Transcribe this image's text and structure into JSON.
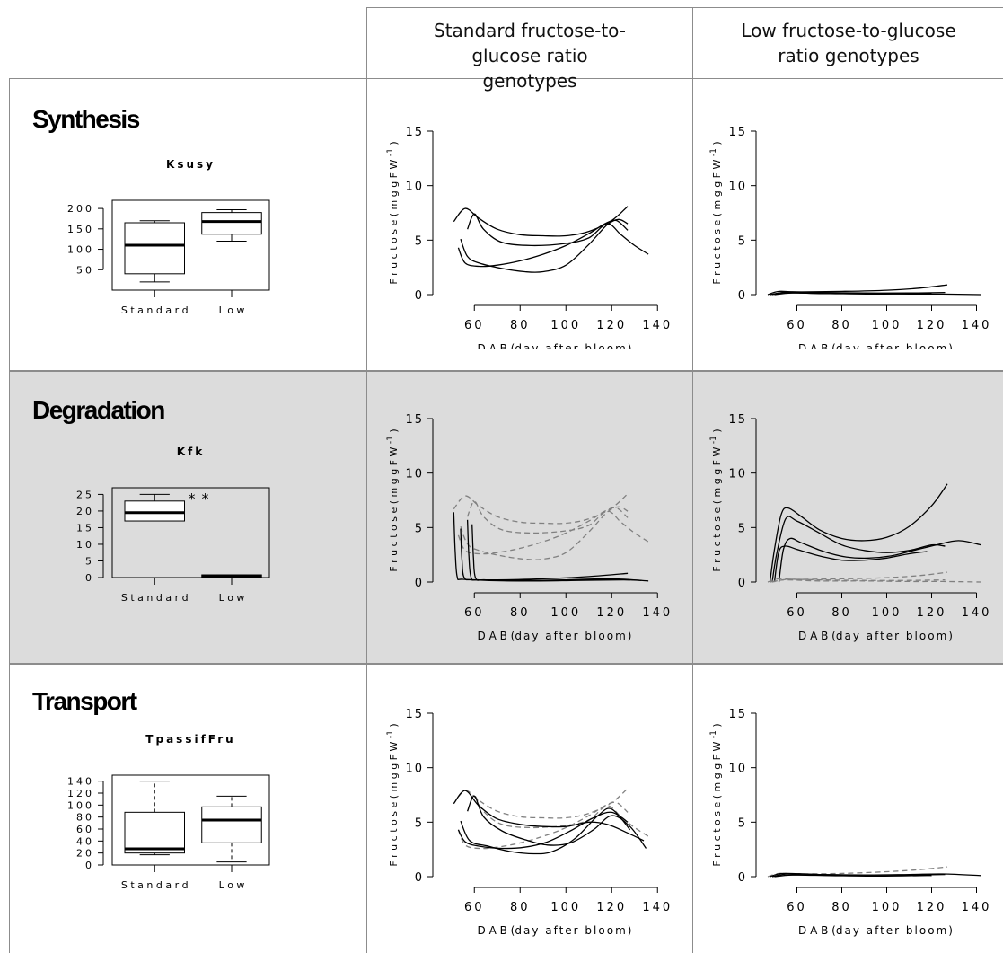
{
  "header": {
    "col_standard": "Standard fructose-to-glucose ratio genotypes",
    "col_low": "Low fructose-to-glucose ratio genotypes"
  },
  "rows": [
    {
      "title": "Synthesis",
      "param": "Ksusy"
    },
    {
      "title": "Degradation",
      "param": "Kfk"
    },
    {
      "title": "Transport",
      "param": "TpassifFru"
    }
  ],
  "axis_text": {
    "xlabel": "D A B",
    "xlabel_paren": "day after bloom",
    "ylabel": "F r u c t o s e",
    "ylabel_paren": "m g  g F W",
    "ylabel_exp": "-1",
    "box_categories": [
      "S t a n d a r d",
      "L o w"
    ]
  },
  "colors": {
    "background": "#ffffff",
    "shaded_row": "#dcdcdc",
    "gridline": "#8c8c8c",
    "curve_solid": "#000000",
    "curve_dashed": "#808080"
  },
  "chart_data": [
    {
      "type": "box",
      "title": "Ksusy",
      "categories": [
        "Standard",
        "Low"
      ],
      "ylim": [
        0,
        220
      ],
      "yticks": [
        50,
        100,
        150,
        200
      ],
      "boxes": [
        {
          "min": 20,
          "q1": 40,
          "median": 110,
          "q3": 165,
          "max": 170,
          "outliers": []
        },
        {
          "min": 120,
          "q1": 137,
          "median": 168,
          "q3": 190,
          "max": 197,
          "outliers": []
        }
      ]
    },
    {
      "type": "box",
      "title": "Kfk",
      "categories": [
        "Standard",
        "Low"
      ],
      "ylim": [
        0,
        27
      ],
      "yticks": [
        0,
        5,
        10,
        15,
        20,
        25
      ],
      "boxes": [
        {
          "min": 17,
          "q1": 17,
          "median": 19.5,
          "q3": 23,
          "max": 25,
          "outliers": [
            24.5,
            24.5
          ]
        },
        {
          "min": 0.2,
          "q1": 0.2,
          "median": 0.5,
          "q3": 0.8,
          "max": 0.8,
          "outliers": []
        }
      ]
    },
    {
      "type": "box",
      "title": "TpassifFru",
      "categories": [
        "Standard",
        "Low"
      ],
      "ylim": [
        0,
        150
      ],
      "yticks": [
        0,
        20,
        40,
        60,
        80,
        100,
        120,
        140
      ],
      "boxes": [
        {
          "min": 17,
          "q1": 20,
          "median": 27,
          "q3": 88,
          "max": 140,
          "outliers": []
        },
        {
          "min": 5,
          "q1": 37,
          "median": 75,
          "q3": 97,
          "max": 115,
          "outliers": []
        }
      ]
    },
    {
      "type": "line",
      "panel": "synthesis-standard",
      "xlim": [
        45,
        145
      ],
      "ylim": [
        0,
        15
      ],
      "xticks": [
        60,
        80,
        100,
        120,
        140
      ],
      "yticks": [
        0,
        5,
        10,
        15
      ],
      "series": [
        {
          "style": "solid",
          "x": [
            51,
            56,
            62,
            70,
            80,
            90,
            100,
            110,
            120,
            127
          ],
          "y": [
            6.7,
            7.9,
            7.0,
            6.0,
            5.5,
            5.4,
            5.4,
            5.8,
            6.8,
            8.1
          ]
        },
        {
          "style": "solid",
          "x": [
            57,
            60,
            64,
            72,
            85,
            100,
            110,
            118,
            124,
            130,
            136
          ],
          "y": [
            6.0,
            7.4,
            6.0,
            4.8,
            4.5,
            4.7,
            5.2,
            6.5,
            5.5,
            4.5,
            3.7
          ]
        },
        {
          "style": "solid",
          "x": [
            53,
            56,
            62,
            70,
            80,
            90,
            100,
            110,
            117,
            122,
            127
          ],
          "y": [
            4.3,
            2.9,
            2.6,
            2.7,
            3.1,
            3.7,
            4.5,
            5.6,
            6.5,
            6.8,
            5.9
          ]
        },
        {
          "style": "solid",
          "x": [
            54,
            57,
            62,
            72,
            82,
            90,
            100,
            110,
            118,
            123,
            127
          ],
          "y": [
            5.1,
            3.5,
            2.9,
            2.4,
            2.1,
            2.1,
            2.7,
            4.6,
            6.4,
            6.9,
            6.5
          ]
        }
      ]
    },
    {
      "type": "line",
      "panel": "synthesis-low",
      "xlim": [
        45,
        145
      ],
      "ylim": [
        0,
        15
      ],
      "xticks": [
        60,
        80,
        100,
        120,
        140
      ],
      "yticks": [
        0,
        5,
        10,
        15
      ],
      "series": [
        {
          "style": "solid",
          "x": [
            47,
            52,
            60,
            80,
            100,
            115,
            127
          ],
          "y": [
            0.0,
            0.3,
            0.25,
            0.3,
            0.4,
            0.6,
            0.9
          ]
        },
        {
          "style": "solid",
          "x": [
            48,
            55,
            70,
            90,
            110,
            125,
            142
          ],
          "y": [
            0.0,
            0.2,
            0.1,
            0.1,
            0.05,
            0.05,
            0.0
          ]
        },
        {
          "style": "solid",
          "x": [
            49,
            56,
            70,
            90,
            110,
            126
          ],
          "y": [
            0.0,
            0.25,
            0.2,
            0.15,
            0.15,
            0.2
          ]
        },
        {
          "style": "solid",
          "x": [
            50,
            58,
            75,
            95,
            115,
            120
          ],
          "y": [
            0.0,
            0.15,
            0.1,
            0.05,
            0.1,
            0.1
          ]
        }
      ]
    },
    {
      "type": "line",
      "panel": "degradation-standard",
      "xlim": [
        45,
        145
      ],
      "ylim": [
        0,
        15
      ],
      "xticks": [
        60,
        80,
        100,
        120,
        140
      ],
      "yticks": [
        0,
        5,
        10,
        15
      ],
      "series": [
        {
          "style": "dashed",
          "x": [
            51,
            56,
            62,
            70,
            80,
            90,
            100,
            110,
            120,
            127
          ],
          "y": [
            6.7,
            7.9,
            7.0,
            6.0,
            5.5,
            5.4,
            5.4,
            5.8,
            6.8,
            8.1
          ]
        },
        {
          "style": "dashed",
          "x": [
            57,
            60,
            64,
            72,
            85,
            100,
            110,
            118,
            124,
            130,
            136
          ],
          "y": [
            6.0,
            7.4,
            6.0,
            4.8,
            4.5,
            4.7,
            5.2,
            6.5,
            5.5,
            4.5,
            3.7
          ]
        },
        {
          "style": "dashed",
          "x": [
            53,
            56,
            62,
            70,
            80,
            90,
            100,
            110,
            117,
            122,
            127
          ],
          "y": [
            4.3,
            2.9,
            2.6,
            2.7,
            3.1,
            3.7,
            4.5,
            5.6,
            6.5,
            6.8,
            5.9
          ]
        },
        {
          "style": "dashed",
          "x": [
            54,
            57,
            62,
            72,
            82,
            90,
            100,
            110,
            118,
            123,
            127
          ],
          "y": [
            5.1,
            3.5,
            2.9,
            2.4,
            2.1,
            2.1,
            2.7,
            4.6,
            6.4,
            6.9,
            6.5
          ]
        },
        {
          "style": "solid",
          "x": [
            51,
            51.6,
            52.5,
            55,
            70,
            90,
            110,
            127
          ],
          "y": [
            6.4,
            3.0,
            0.5,
            0.25,
            0.2,
            0.3,
            0.5,
            0.8
          ]
        },
        {
          "style": "solid",
          "x": [
            54,
            54.6,
            55.6,
            60,
            80,
            100,
            120,
            136
          ],
          "y": [
            4.9,
            2.0,
            0.4,
            0.2,
            0.1,
            0.2,
            0.3,
            0.1
          ]
        },
        {
          "style": "solid",
          "x": [
            57,
            57.6,
            58.6,
            62,
            80,
            100,
            120,
            128
          ],
          "y": [
            5.7,
            2.5,
            0.4,
            0.2,
            0.15,
            0.2,
            0.25,
            0.2
          ]
        },
        {
          "style": "solid",
          "x": [
            59,
            59.6,
            60.6,
            65,
            85,
            105,
            125,
            133
          ],
          "y": [
            5.3,
            2.3,
            0.35,
            0.2,
            0.1,
            0.15,
            0.2,
            0.15
          ]
        }
      ]
    },
    {
      "type": "line",
      "panel": "degradation-low",
      "xlim": [
        45,
        145
      ],
      "ylim": [
        0,
        15
      ],
      "xticks": [
        60,
        80,
        100,
        120,
        140
      ],
      "yticks": [
        0,
        5,
        10,
        15
      ],
      "series": [
        {
          "style": "solid",
          "x": [
            48,
            50,
            53,
            56,
            62,
            70,
            80,
            90,
            100,
            110,
            120,
            127
          ],
          "y": [
            0.0,
            3.0,
            6.2,
            6.8,
            6.0,
            4.8,
            4.0,
            3.8,
            4.1,
            5.1,
            7.0,
            9.0
          ]
        },
        {
          "style": "solid",
          "x": [
            49,
            51,
            55,
            60,
            70,
            80,
            90,
            100,
            110,
            120,
            126
          ],
          "y": [
            0.0,
            2.6,
            5.8,
            5.6,
            4.5,
            3.4,
            2.9,
            2.7,
            2.9,
            3.4,
            3.3
          ]
        },
        {
          "style": "solid",
          "x": [
            50,
            52,
            55,
            60,
            70,
            80,
            90,
            100,
            110,
            118
          ],
          "y": [
            0.0,
            2.8,
            3.3,
            3.0,
            2.4,
            2.0,
            2.0,
            2.2,
            2.6,
            2.8
          ]
        },
        {
          "style": "solid",
          "x": [
            52,
            54,
            57,
            62,
            72,
            82,
            92,
            102,
            112,
            122,
            132,
            142
          ],
          "y": [
            0.0,
            3.0,
            4.0,
            3.6,
            2.8,
            2.3,
            2.2,
            2.4,
            2.9,
            3.4,
            3.8,
            3.4
          ]
        },
        {
          "style": "dashed",
          "x": [
            47,
            52,
            60,
            80,
            100,
            115,
            127
          ],
          "y": [
            0.0,
            0.3,
            0.25,
            0.3,
            0.4,
            0.6,
            0.9
          ]
        },
        {
          "style": "dashed",
          "x": [
            48,
            55,
            70,
            90,
            110,
            125,
            142
          ],
          "y": [
            0.0,
            0.2,
            0.1,
            0.1,
            0.05,
            0.05,
            0.0
          ]
        },
        {
          "style": "dashed",
          "x": [
            49,
            56,
            70,
            90,
            110,
            126
          ],
          "y": [
            0.0,
            0.25,
            0.2,
            0.15,
            0.15,
            0.2
          ]
        }
      ]
    },
    {
      "type": "line",
      "panel": "transport-standard",
      "xlim": [
        45,
        145
      ],
      "ylim": [
        0,
        15
      ],
      "xticks": [
        60,
        80,
        100,
        120,
        140
      ],
      "yticks": [
        0,
        5,
        10,
        15
      ],
      "series": [
        {
          "style": "dashed",
          "x": [
            51,
            56,
            62,
            70,
            80,
            90,
            100,
            110,
            120,
            127
          ],
          "y": [
            6.7,
            7.9,
            7.0,
            6.0,
            5.5,
            5.4,
            5.4,
            5.8,
            6.8,
            8.1
          ]
        },
        {
          "style": "dashed",
          "x": [
            57,
            60,
            64,
            72,
            85,
            100,
            110,
            118,
            124,
            130,
            136
          ],
          "y": [
            6.0,
            7.4,
            6.0,
            4.8,
            4.5,
            4.7,
            5.2,
            6.5,
            5.5,
            4.5,
            3.7
          ]
        },
        {
          "style": "dashed",
          "x": [
            53,
            56,
            62,
            70,
            80,
            90,
            100,
            110,
            117,
            122,
            127
          ],
          "y": [
            4.3,
            2.9,
            2.6,
            2.7,
            3.1,
            3.7,
            4.5,
            5.6,
            6.5,
            6.8,
            5.9
          ]
        },
        {
          "style": "solid",
          "x": [
            51,
            56,
            62,
            70,
            80,
            90,
            100,
            110,
            118,
            126,
            134
          ],
          "y": [
            6.7,
            7.9,
            6.5,
            5.3,
            4.8,
            4.6,
            4.6,
            5.0,
            4.8,
            4.1,
            3.3
          ]
        },
        {
          "style": "solid",
          "x": [
            57,
            60,
            64,
            72,
            82,
            92,
            102,
            112,
            120,
            128,
            135
          ],
          "y": [
            6.0,
            7.4,
            5.5,
            4.2,
            3.4,
            2.9,
            3.1,
            4.3,
            5.6,
            4.6,
            2.6
          ]
        },
        {
          "style": "solid",
          "x": [
            53,
            56,
            62,
            72,
            82,
            92,
            102,
            112,
            120,
            127
          ],
          "y": [
            4.3,
            3.2,
            2.8,
            2.6,
            2.7,
            3.2,
            4.2,
            5.4,
            5.9,
            5.0
          ]
        },
        {
          "style": "solid",
          "x": [
            54,
            58,
            66,
            76,
            86,
            94,
            104,
            114,
            120,
            128
          ],
          "y": [
            5.1,
            3.3,
            2.8,
            2.3,
            2.1,
            2.3,
            3.5,
            5.6,
            6.2,
            4.3
          ]
        }
      ]
    },
    {
      "type": "line",
      "panel": "transport-low",
      "xlim": [
        45,
        145
      ],
      "ylim": [
        0,
        15
      ],
      "xticks": [
        60,
        80,
        100,
        120,
        140
      ],
      "yticks": [
        0,
        5,
        10,
        15
      ],
      "series": [
        {
          "style": "dashed",
          "x": [
            47,
            52,
            60,
            80,
            100,
            115,
            127
          ],
          "y": [
            0.0,
            0.3,
            0.25,
            0.3,
            0.45,
            0.65,
            0.9
          ]
        },
        {
          "style": "solid",
          "x": [
            48,
            54,
            70,
            90,
            110,
            125,
            142
          ],
          "y": [
            0.0,
            0.3,
            0.2,
            0.15,
            0.2,
            0.25,
            0.1
          ]
        },
        {
          "style": "solid",
          "x": [
            49,
            56,
            70,
            90,
            110,
            126
          ],
          "y": [
            0.0,
            0.25,
            0.2,
            0.15,
            0.15,
            0.2
          ]
        },
        {
          "style": "solid",
          "x": [
            50,
            58,
            75,
            95,
            115,
            120
          ],
          "y": [
            0.0,
            0.15,
            0.1,
            0.05,
            0.1,
            0.1
          ]
        }
      ]
    }
  ]
}
